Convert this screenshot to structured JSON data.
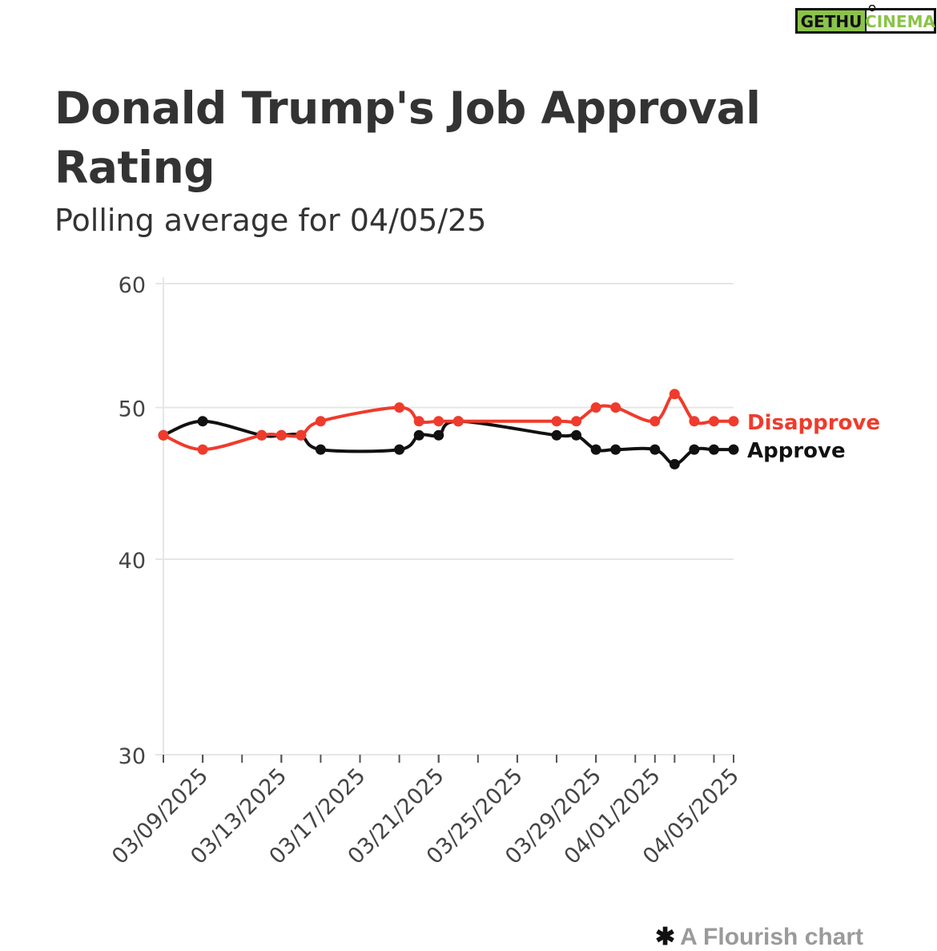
{
  "watermark": {
    "part1": "GETHU",
    "part2": "CINEMA",
    "color1": "#8bc34a",
    "color2": "#111111"
  },
  "title": "Donald Trump's Job Approval Rating",
  "subtitle": "Polling average for 04/05/25",
  "credit": {
    "star": "✱",
    "text": "A Flourish chart"
  },
  "chart_data": {
    "type": "line",
    "title": "Donald Trump's Job Approval Rating",
    "subtitle": "Polling average for 04/05/25",
    "xlabel": "",
    "ylabel": "",
    "ylim": [
      30,
      60
    ],
    "yscale": "log",
    "yticks": [
      30,
      40,
      50,
      60
    ],
    "ytick_labels": [
      "30",
      "40",
      "50",
      "60"
    ],
    "xlim": [
      "2025-03-07",
      "2025-04-05"
    ],
    "xticks": [
      "2025-03-09",
      "2025-03-13",
      "2025-03-17",
      "2025-03-21",
      "2025-03-25",
      "2025-03-29",
      "2025-04-01",
      "2025-04-05"
    ],
    "xtick_labels": [
      "03/09/2025",
      "03/13/2025",
      "03/17/2025",
      "03/21/2025",
      "03/25/2025",
      "03/29/2025",
      "04/01/2025",
      "04/05/2025"
    ],
    "grid": true,
    "legend": "direct labels at line ends",
    "series": [
      {
        "name": "Disapprove",
        "color": "#ef3b2c",
        "points": [
          [
            "2025-03-07",
            48
          ],
          [
            "2025-03-09",
            47
          ],
          [
            "2025-03-12",
            48
          ],
          [
            "2025-03-13",
            48
          ],
          [
            "2025-03-14",
            48
          ],
          [
            "2025-03-15",
            49
          ],
          [
            "2025-03-19",
            50
          ],
          [
            "2025-03-20",
            49
          ],
          [
            "2025-03-21",
            49
          ],
          [
            "2025-03-22",
            49
          ],
          [
            "2025-03-27",
            49
          ],
          [
            "2025-03-28",
            49
          ],
          [
            "2025-03-29",
            50
          ],
          [
            "2025-03-30",
            50
          ],
          [
            "2025-04-01",
            49
          ],
          [
            "2025-04-02",
            51
          ],
          [
            "2025-04-03",
            49
          ],
          [
            "2025-04-04",
            49
          ],
          [
            "2025-04-05",
            49
          ]
        ]
      },
      {
        "name": "Approve",
        "color": "#111111",
        "points": [
          [
            "2025-03-07",
            48
          ],
          [
            "2025-03-09",
            49
          ],
          [
            "2025-03-12",
            48
          ],
          [
            "2025-03-13",
            48
          ],
          [
            "2025-03-14",
            48
          ],
          [
            "2025-03-15",
            47
          ],
          [
            "2025-03-19",
            47
          ],
          [
            "2025-03-20",
            48
          ],
          [
            "2025-03-21",
            48
          ],
          [
            "2025-03-22",
            49
          ],
          [
            "2025-03-27",
            48
          ],
          [
            "2025-03-28",
            48
          ],
          [
            "2025-03-29",
            47
          ],
          [
            "2025-03-30",
            47
          ],
          [
            "2025-04-01",
            47
          ],
          [
            "2025-04-02",
            46
          ],
          [
            "2025-04-03",
            47
          ],
          [
            "2025-04-04",
            47
          ],
          [
            "2025-04-05",
            47
          ]
        ]
      }
    ]
  }
}
